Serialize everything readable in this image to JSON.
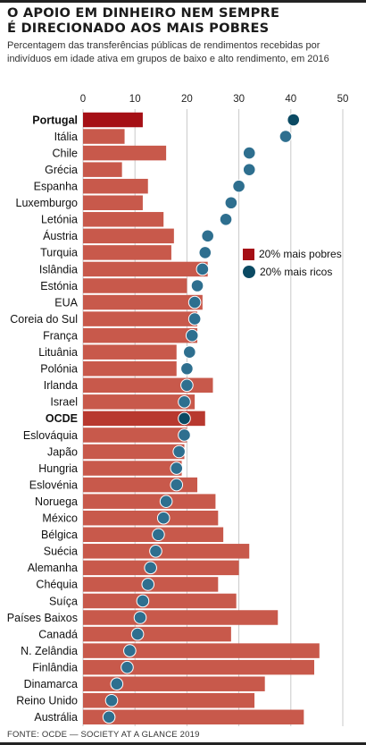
{
  "header": {
    "title_line1": "O APOIO EM DINHEIRO NEM SEMPRE",
    "title_line2": "É DIRECIONADO AOS MAIS POBRES",
    "subtitle_line1": "Percentagem das transferências públicas de rendimentos recebidas por",
    "subtitle_line2": "indivíduos em idade ativa em grupos de baixo e alto rendimento, em 2016"
  },
  "legend": {
    "poor_label": "20% mais pobres",
    "rich_label": "20% mais ricos"
  },
  "footer": {
    "source": "FONTE: OCDE — SOCIETY AT A GLANCE 2019"
  },
  "colors": {
    "bar": "#c8594b",
    "bar_highlight_portugal": "#a50f15",
    "bar_highlight_ocde": "#b8392f",
    "dot": "#2e6f8f",
    "dot_portugal": "#0b4a63",
    "dot_ocde": "#0b4a63",
    "grid": "#c9c9c9"
  },
  "chart_data": {
    "type": "bar",
    "orientation": "horizontal",
    "xlim": [
      0,
      50
    ],
    "xticks": [
      0,
      10,
      20,
      30,
      40,
      50
    ],
    "grid": true,
    "legend_position": "right-middle",
    "categories": [
      "Portugal",
      "Itália",
      "Chile",
      "Grécia",
      "Espanha",
      "Luxemburgo",
      "Letónia",
      "Áustria",
      "Turquia",
      "Islândia",
      "Estónia",
      "EUA",
      "Coreia do Sul",
      "França",
      "Lituânia",
      "Polónia",
      "Irlanda",
      "Israel",
      "OCDE",
      "Eslováquia",
      "Japão",
      "Hungria",
      "Eslovénia",
      "Noruega",
      "México",
      "Bélgica",
      "Suécia",
      "Alemanha",
      "Chéquia",
      "Suíça",
      "Países Baixos",
      "Canadá",
      "N. Zelândia",
      "Finlândia",
      "Dinamarca",
      "Reino Unido",
      "Austrália"
    ],
    "highlight": [
      "Portugal",
      "OCDE"
    ],
    "series": [
      {
        "name": "20% mais pobres",
        "mark": "bar",
        "values": [
          11.5,
          8,
          16,
          7.5,
          12.5,
          11.5,
          15.5,
          17.5,
          17,
          24,
          20,
          23,
          22,
          22,
          18,
          18,
          25,
          21.5,
          23.5,
          20,
          19.5,
          19,
          22,
          25.5,
          26,
          27,
          32,
          30,
          26,
          29.5,
          37.5,
          28.5,
          45.5,
          44.5,
          35,
          33,
          42.5
        ]
      },
      {
        "name": "20% mais ricos",
        "mark": "dot",
        "values": [
          40.5,
          39,
          32,
          32,
          30,
          28.5,
          27.5,
          24,
          23.5,
          23,
          22,
          21.5,
          21.5,
          21,
          20.5,
          20,
          20,
          19.5,
          19.5,
          19.5,
          18.5,
          18,
          18,
          16,
          15.5,
          14.5,
          14,
          13,
          12.5,
          11.5,
          11,
          10.5,
          9,
          8.5,
          6.5,
          5.5,
          5
        ]
      }
    ]
  }
}
